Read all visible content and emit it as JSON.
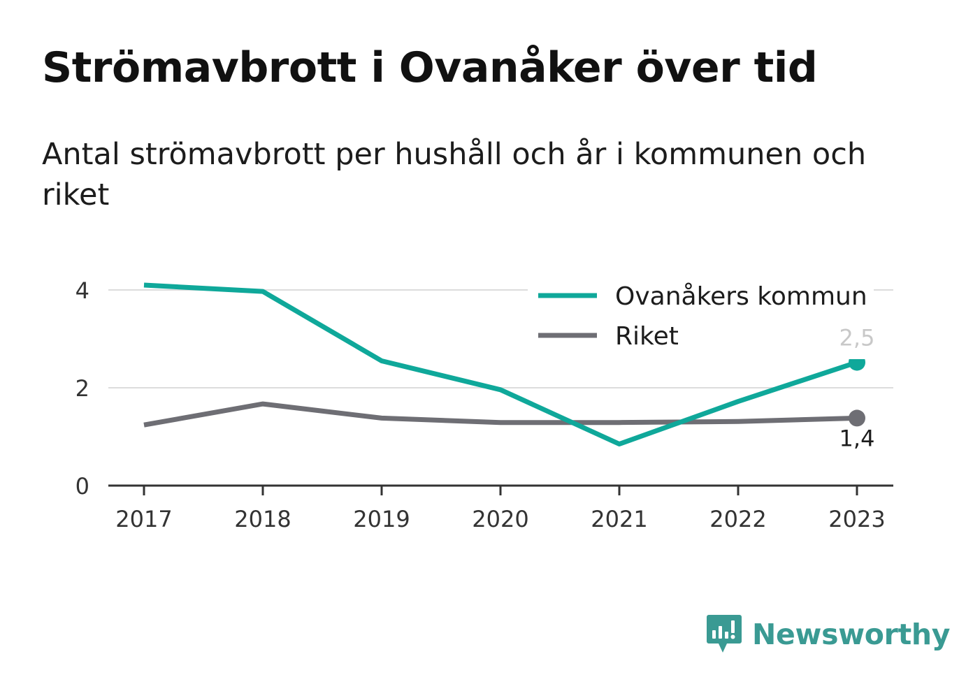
{
  "header": {
    "title": "Strömavbrott i Ovanåker över tid",
    "subtitle": "Antal strömavbrott per hushåll och år i kommunen och riket"
  },
  "brand": {
    "name": "Newsworthy",
    "color": "#3a9a93"
  },
  "chart_data": {
    "type": "line",
    "x": [
      "2017",
      "2018",
      "2019",
      "2020",
      "2021",
      "2022",
      "2023"
    ],
    "ylim": [
      0,
      4
    ],
    "yticks": [
      {
        "value": 0,
        "label": "0"
      },
      {
        "value": 2,
        "label": "2"
      },
      {
        "value": 4,
        "label": "4"
      }
    ],
    "grid": true,
    "legend_position": "top-right",
    "series": [
      {
        "name": "Ovanåkers kommun",
        "color": "#0fa89a",
        "values": [
          4.1,
          3.97,
          2.55,
          1.96,
          0.85,
          1.72,
          2.52
        ],
        "end_label": "2,5"
      },
      {
        "name": "Riket",
        "color": "#6e6e74",
        "values": [
          1.24,
          1.67,
          1.38,
          1.29,
          1.29,
          1.31,
          1.38
        ],
        "end_label": "1,4"
      }
    ]
  }
}
